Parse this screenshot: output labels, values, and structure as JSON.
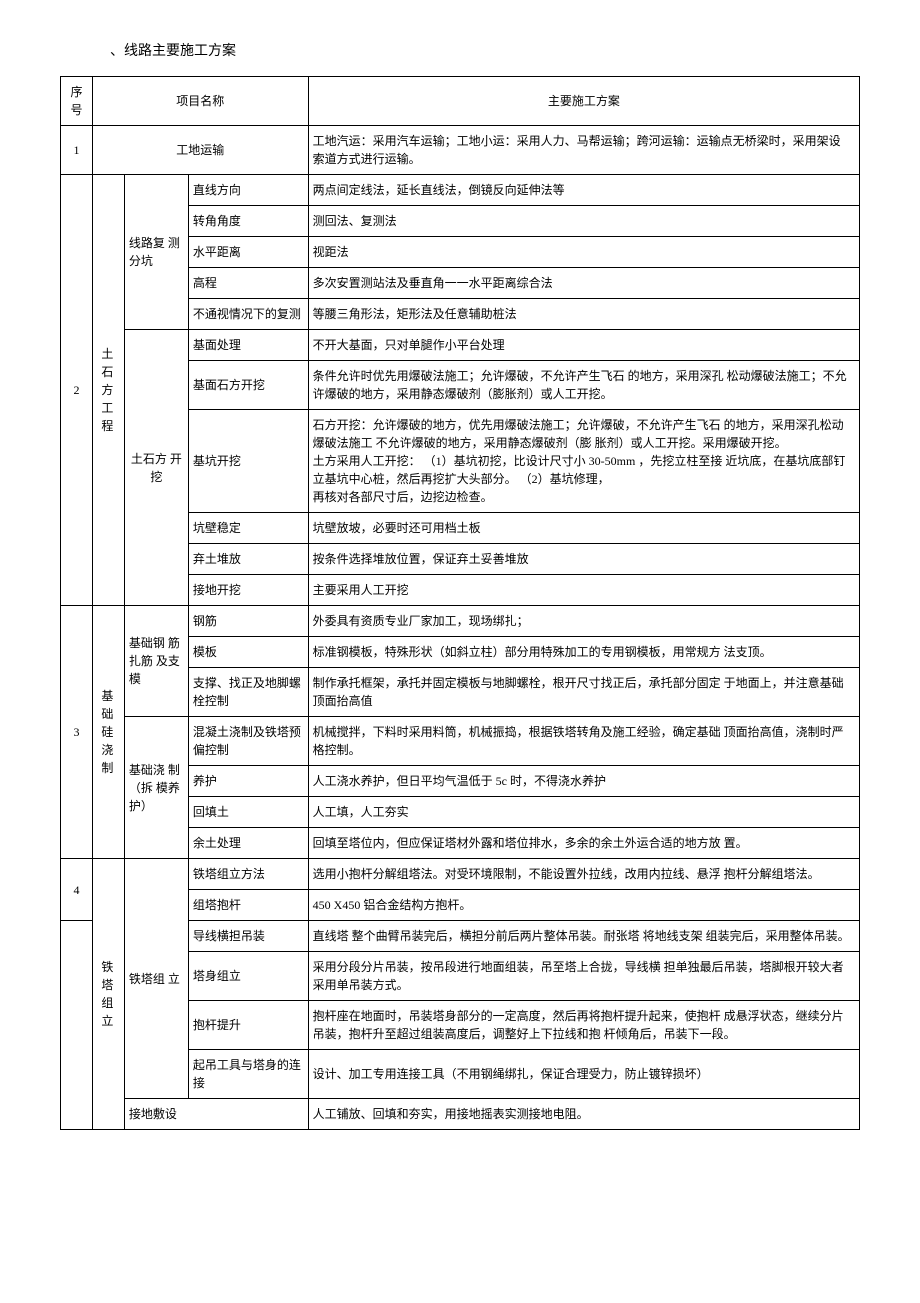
{
  "title": "、线路主要施工方案",
  "headers": {
    "seq": "序 号",
    "projName": "项目名称",
    "mainPlan": "主要施工方案"
  },
  "rows": {
    "r1": {
      "seq": "1",
      "proj": "工地运输",
      "content": "工地汽运：采用汽车运输；工地小运：采用人力、马帮运输；跨河运输：运输点无桥梁时，采用架设 索道方式进行运输。"
    },
    "r2": {
      "seq": "2",
      "cat1": "土 石 方 工 程",
      "cat2a": "线路复 测 分坑",
      "r2a": {
        "label": "直线方向",
        "content": "两点间定线法，延长直线法，倒镜反向延伸法等"
      },
      "r2b": {
        "label": "转角角度",
        "content": "测回法、复测法"
      },
      "r2c": {
        "label": "水平距离",
        "content": "视距法"
      },
      "r2d": {
        "label": "高程",
        "content": "多次安置测站法及垂直角一一水平距离综合法"
      },
      "r2e": {
        "label": "不通视情况下的复测",
        "content": "等腰三角形法，矩形法及任意辅助桩法"
      },
      "cat2b": "土石方 开 挖",
      "r2f": {
        "label": "基面处理",
        "content": "不开大基面，只对单腿作小平台处理"
      },
      "r2g": {
        "label": "基面石方开挖",
        "content": "条件允许时优先用爆破法施工；允许爆破，不允许产生飞石 的地方，采用深孔 松动爆破法施工；不允许爆破的地方，采用静态爆破剂（膨胀剂）或人工开挖。"
      },
      "r2h": {
        "label": "基坑开挖",
        "content": "石方开挖：允许爆破的地方，优先用爆破法施工；允许爆破，不允许产生飞石 的地方，采用深孔松动爆破法施工 不允许爆破的地方，采用静态爆破剂（膨 胀剂）或人工开挖。采用爆破开挖。\n土方采用人工开挖： （1）基坑初挖，比设计尺寸小 30-50mm ，先挖立柱至接 近坑底，在基坑底部钉立基坑中心桩，然后再挖扩大头部分。 （2）基坑修理，\n再核对各部尺寸后，边挖边检查。"
      },
      "r2i": {
        "label": "坑壁稳定",
        "content": "坑壁放坡，必要时还可用档土板"
      },
      "r2j": {
        "label": "弃土堆放",
        "content": "按条件选择堆放位置，保证弃土妥善堆放"
      },
      "r2k": {
        "label": "接地开挖",
        "content": "主要采用人工开挖"
      }
    },
    "r3": {
      "seq": "3",
      "cat1": "基 础 硅 浇 制",
      "cat2a": "基础钢 筋 扎筋 及支 模",
      "r3a": {
        "label": "钢筋",
        "content": "外委具有资质专业厂家加工，现场绑扎；"
      },
      "r3b": {
        "label": "模板",
        "content": "标准钢模板，特殊形状（如斜立柱）部分用特殊加工的专用钢模板，用常规方 法支顶。"
      },
      "r3c": {
        "label": "支撑、找正及地脚螺 栓控制",
        "content": "制作承托框架，承托并固定模板与地脚螺栓，根开尺寸找正后，承托部分固定 于地面上，并注意基础顶面抬高值"
      },
      "cat2b": "基础浇 制 （拆 模养 护）",
      "r3d": {
        "label": "混凝土浇制及铁塔预 偏控制",
        "content": "机械搅拌，下料时采用料筒，机械振捣，根据铁塔转角及施工经验，确定基础 顶面抬高值，浇制时严格控制。"
      },
      "r3e": {
        "label": "养护",
        "content": "人工浇水养护，但日平均气温低于 5c 时，不得浇水养护"
      },
      "r3f": {
        "label": "回填土",
        "content": "人工填，人工夯实"
      },
      "r3g": {
        "label": "余土处理",
        "content": "回填至塔位内，但应保证塔材外露和塔位排水，多余的余土外运合适的地方放 置。"
      }
    },
    "r4": {
      "seq": "4",
      "cat1": "铁 塔 组 立",
      "cat2a": "铁塔组 立",
      "r4a": {
        "label": "铁塔组立方法",
        "content": "选用小抱杆分解组塔法。对受环境限制，不能设置外拉线，改用内拉线、悬浮 抱杆分解组塔法。"
      },
      "r4b": {
        "label": "组塔抱杆",
        "content": "450 X450 铝合金结构方抱杆。"
      },
      "r4c": {
        "label": "导线横担吊装",
        "content": "直线塔 整个曲臂吊装完后，横担分前后两片整体吊装。耐张塔 将地线支架 组装完后，采用整体吊装。"
      },
      "r4d": {
        "label": "塔身组立",
        "content": "采用分段分片吊装，按吊段进行地面组装，吊至塔上合拢，导线横 担单独最后吊装，塔脚根开较大者采用单吊装方式。"
      },
      "r4e": {
        "label": "抱杆提升",
        "content": "抱杆座在地面时，吊装塔身部分的一定高度，然后再将抱杆提升起来，使抱杆 成悬浮状态，继续分片吊装，抱杆升至超过组装高度后，调整好上下拉线和抱 杆倾角后，吊装下一段。"
      },
      "r4f": {
        "label": "起吊工具与塔身的连 接",
        "content": "设计、加工专用连接工具（不用钢绳绑扎，保证合理受力，防止镀锌损坏）"
      },
      "cat2b": "接地敷设",
      "r4g": {
        "content": "人工铺放、回填和夯实，用接地摇表实测接地电阻。"
      }
    }
  }
}
